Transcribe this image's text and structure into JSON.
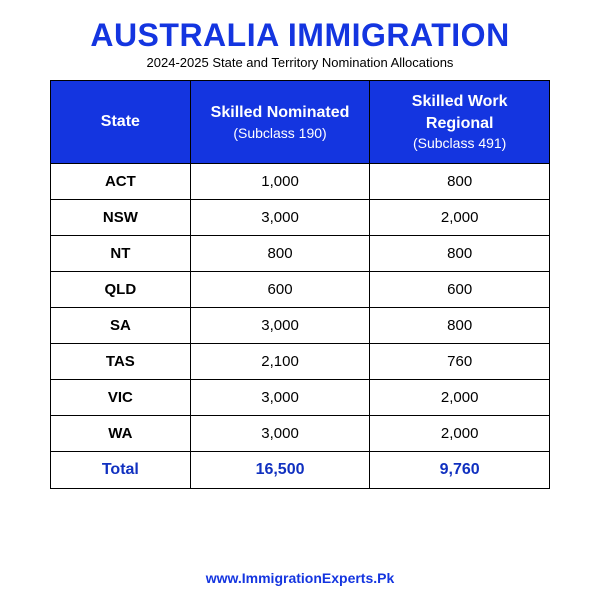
{
  "title": "AUSTRALIA IMMIGRATION",
  "subtitle": "2024-2025 State and Territory Nomination Allocations",
  "colors": {
    "brand_blue": "#1435e0",
    "total_text": "#1030c0",
    "border": "#000000",
    "background": "#ffffff",
    "header_text": "#ffffff"
  },
  "table": {
    "type": "table",
    "columns": [
      {
        "main": "State",
        "sub": ""
      },
      {
        "main": "Skilled Nominated",
        "sub": "(Subclass 190)"
      },
      {
        "main": "Skilled Work Regional",
        "sub": "(Subclass 491)"
      }
    ],
    "rows": [
      {
        "state": "ACT",
        "v1": "1,000",
        "v2": "800"
      },
      {
        "state": "NSW",
        "v1": "3,000",
        "v2": "2,000"
      },
      {
        "state": "NT",
        "v1": "800",
        "v2": "800"
      },
      {
        "state": "QLD",
        "v1": "600",
        "v2": "600"
      },
      {
        "state": "SA",
        "v1": "3,000",
        "v2": "800"
      },
      {
        "state": "TAS",
        "v1": "2,100",
        "v2": "760"
      },
      {
        "state": "VIC",
        "v1": "3,000",
        "v2": "2,000"
      },
      {
        "state": "WA",
        "v1": "3,000",
        "v2": "2,000"
      }
    ],
    "total": {
      "label": "Total",
      "v1": "16,500",
      "v2": "9,760"
    }
  },
  "footer": "www.ImmigrationExperts.Pk"
}
